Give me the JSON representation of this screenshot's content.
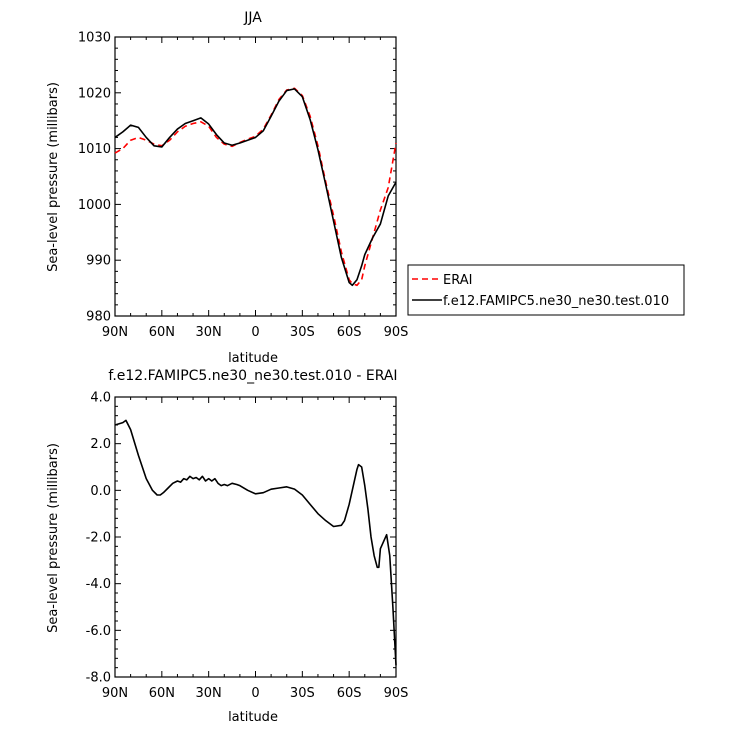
{
  "chart_data": [
    {
      "type": "line",
      "title": "JJA",
      "xlabel": "latitude",
      "ylabel": "Sea-level pressure (millibars)",
      "xlim": [
        90,
        -90
      ],
      "ylim": [
        980,
        1030
      ],
      "x_ticks": [
        90,
        60,
        30,
        0,
        -30,
        -60,
        -90
      ],
      "x_tick_labels": [
        "90N",
        "60N",
        "30N",
        "0",
        "30S",
        "60S",
        "90S"
      ],
      "y_ticks": [
        980,
        990,
        1000,
        1010,
        1020,
        1030
      ],
      "y_tick_labels": [
        "980",
        "990",
        "1000",
        "1010",
        "1020",
        "1030"
      ],
      "legend": {
        "placement": "outside-right",
        "entries": [
          "ERAI",
          "f.e12.FAMIPC5.ne30_ne30.test.010"
        ]
      },
      "series": [
        {
          "name": "ERAI",
          "color": "#ff0000",
          "dash": true,
          "x": [
            90,
            85,
            80,
            75,
            70,
            65,
            60,
            55,
            50,
            45,
            40,
            35,
            30,
            25,
            20,
            15,
            10,
            5,
            0,
            -5,
            -10,
            -15,
            -20,
            -25,
            -30,
            -35,
            -40,
            -45,
            -50,
            -55,
            -60,
            -62,
            -65,
            -68,
            -70,
            -75,
            -80,
            -85,
            -90
          ],
          "y": [
            1009.2,
            1010,
            1011.5,
            1012,
            1011.5,
            1010.8,
            1010.5,
            1011.5,
            1013,
            1014,
            1014.5,
            1014.8,
            1014,
            1012,
            1010.8,
            1010.4,
            1011.1,
            1011.7,
            1012.2,
            1013.5,
            1016,
            1018.8,
            1020.5,
            1020.8,
            1019.5,
            1015.8,
            1010.5,
            1004,
            998,
            991.5,
            986.5,
            985.8,
            985.5,
            986.5,
            989,
            994,
            999,
            1003,
            1011
          ]
        },
        {
          "name": "f.e12.FAMIPC5.ne30_ne30.test.010",
          "color": "#000000",
          "dash": false,
          "x": [
            90,
            85,
            80,
            75,
            70,
            65,
            60,
            55,
            50,
            45,
            40,
            35,
            30,
            25,
            20,
            15,
            10,
            5,
            0,
            -5,
            -10,
            -15,
            -20,
            -25,
            -30,
            -35,
            -40,
            -45,
            -50,
            -55,
            -60,
            -62,
            -65,
            -68,
            -70,
            -75,
            -80,
            -85,
            -90
          ],
          "y": [
            1012,
            1013,
            1014.2,
            1013.8,
            1012,
            1010.5,
            1010.3,
            1012,
            1013.5,
            1014.5,
            1015,
            1015.5,
            1014.4,
            1012.5,
            1011,
            1010.6,
            1011,
            1011.5,
            1012,
            1013.2,
            1015.8,
            1018.5,
            1020.4,
            1020.7,
            1019.3,
            1015.2,
            1009.8,
            1003.5,
            997,
            990.5,
            986,
            985.5,
            986.5,
            989,
            991,
            994,
            996.5,
            1001.5,
            1004
          ]
        }
      ]
    },
    {
      "type": "line",
      "title": "f.e12.FAMIPC5.ne30_ne30.test.010 - ERAI",
      "xlabel": "latitude",
      "ylabel": "Sea-level pressure (millibars)",
      "xlim": [
        90,
        -90
      ],
      "ylim": [
        -8,
        4
      ],
      "x_ticks": [
        90,
        60,
        30,
        0,
        -30,
        -60,
        -90
      ],
      "x_tick_labels": [
        "90N",
        "60N",
        "30N",
        "0",
        "30S",
        "60S",
        "90S"
      ],
      "y_ticks": [
        -8,
        -6,
        -4,
        -2,
        0,
        2,
        4
      ],
      "y_tick_labels": [
        "-8.0",
        "-6.0",
        "-4.0",
        "-2.0",
        "0.0",
        "2.0",
        "4.0"
      ],
      "series": [
        {
          "color": "#000000",
          "dash": false,
          "x": [
            90,
            85,
            83,
            80,
            75,
            70,
            66,
            63,
            61,
            59,
            56,
            53,
            50,
            48,
            46,
            44,
            42,
            40,
            38,
            36,
            34,
            32,
            30,
            28,
            26,
            24,
            22,
            20,
            18,
            15,
            12,
            10,
            5,
            0,
            -5,
            -10,
            -15,
            -20,
            -25,
            -30,
            -35,
            -40,
            -45,
            -50,
            -55,
            -57,
            -60,
            -63,
            -65,
            -66,
            -68,
            -70,
            -72,
            -74,
            -76,
            -78,
            -79,
            -80,
            -82,
            -84,
            -86,
            -88,
            -90
          ],
          "y": [
            2.8,
            2.9,
            3.0,
            2.6,
            1.5,
            0.5,
            0.0,
            -0.2,
            -0.2,
            -0.1,
            0.1,
            0.3,
            0.4,
            0.35,
            0.5,
            0.45,
            0.6,
            0.5,
            0.55,
            0.45,
            0.6,
            0.4,
            0.5,
            0.4,
            0.5,
            0.3,
            0.2,
            0.25,
            0.2,
            0.3,
            0.25,
            0.2,
            0.0,
            -0.15,
            -0.1,
            0.05,
            0.1,
            0.15,
            0.05,
            -0.2,
            -0.6,
            -1.0,
            -1.3,
            -1.55,
            -1.5,
            -1.3,
            -0.6,
            0.3,
            0.9,
            1.1,
            1.0,
            0.2,
            -0.8,
            -2.0,
            -2.8,
            -3.3,
            -3.3,
            -2.5,
            -2.2,
            -1.9,
            -2.8,
            -5.0,
            -7.5
          ]
        }
      ]
    }
  ]
}
